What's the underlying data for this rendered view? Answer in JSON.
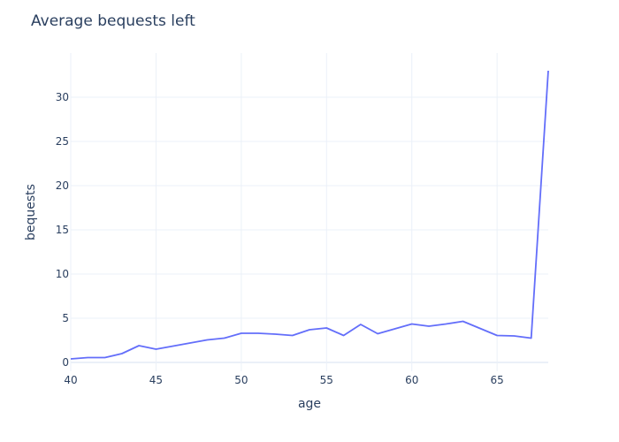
{
  "chart_data": {
    "type": "line",
    "title": "Average bequests left",
    "xlabel": "age",
    "ylabel": "bequests",
    "xlim": [
      40,
      68
    ],
    "ylim": [
      -1,
      35
    ],
    "xticks": [
      40,
      45,
      50,
      55,
      60,
      65
    ],
    "yticks": [
      0,
      5,
      10,
      15,
      20,
      25,
      30
    ],
    "grid": true,
    "legend": "none",
    "series": [
      {
        "color": "#636efa",
        "x": [
          40,
          41,
          42,
          43,
          44,
          45,
          46,
          47,
          48,
          49,
          50,
          51,
          52,
          53,
          54,
          55,
          56,
          57,
          58,
          59,
          60,
          61,
          62,
          63,
          64,
          65,
          66,
          67,
          68
        ],
        "y": [
          0.4,
          0.55,
          0.55,
          1.0,
          1.9,
          1.5,
          1.85,
          2.2,
          2.55,
          2.75,
          3.3,
          3.3,
          3.2,
          3.05,
          3.7,
          3.9,
          3.05,
          4.3,
          3.25,
          3.8,
          4.35,
          4.1,
          4.35,
          4.65,
          3.85,
          3.05,
          3.0,
          2.75,
          33.0
        ]
      }
    ]
  }
}
